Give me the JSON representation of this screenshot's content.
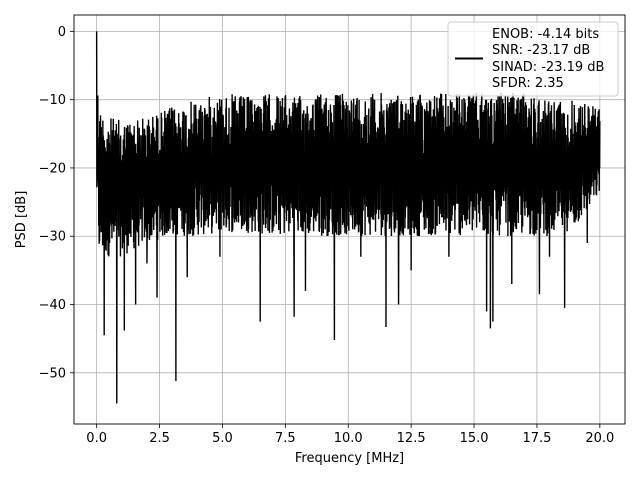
{
  "chart_data": {
    "type": "line",
    "title": "",
    "xlabel": "Frequency [MHz]",
    "ylabel": "PSD [dB]",
    "xlim": [
      -0.9,
      21.0
    ],
    "ylim": [
      -57.5,
      2.4
    ],
    "x_ticks": [
      {
        "value": 0.0,
        "label": "0.0"
      },
      {
        "value": 2.5,
        "label": "2.5"
      },
      {
        "value": 5.0,
        "label": "5.0"
      },
      {
        "value": 7.5,
        "label": "7.5"
      },
      {
        "value": 10.0,
        "label": "10.0"
      },
      {
        "value": 12.5,
        "label": "12.5"
      },
      {
        "value": 15.0,
        "label": "15.0"
      },
      {
        "value": 17.5,
        "label": "17.5"
      },
      {
        "value": 20.0,
        "label": "20.0"
      }
    ],
    "y_ticks": [
      {
        "value": 0,
        "label": "0"
      },
      {
        "value": -10,
        "label": "−10"
      },
      {
        "value": -20,
        "label": "−20"
      },
      {
        "value": -30,
        "label": "−30"
      },
      {
        "value": -40,
        "label": "−40"
      },
      {
        "value": -50,
        "label": "−50"
      }
    ],
    "grid": true,
    "legend": {
      "placement": "top-right",
      "entries": [
        "ENOB: -4.14 bits",
        "SNR: -23.17 dB",
        "SINAD: -23.19 dB",
        "SFDR: 2.35"
      ]
    },
    "series": [
      {
        "color": "#000000",
        "x_range": [
          0.0,
          20.0
        ],
        "envelope": {
          "x": [
            0.0,
            0.1,
            0.5,
            1.0,
            2.0,
            3.0,
            4.0,
            5.0,
            6.0,
            7.0,
            8.0,
            9.0,
            10.0,
            11.0,
            12.0,
            13.0,
            14.0,
            15.0,
            16.0,
            17.0,
            18.0,
            19.0,
            20.0
          ],
          "upper": [
            -5,
            -11,
            -12.5,
            -13,
            -12.5,
            -11,
            -10,
            -9,
            -9.5,
            -9,
            -9.5,
            -9,
            -9,
            -9,
            -9,
            -9,
            -9,
            -9,
            -9,
            -9,
            -9.5,
            -10,
            -11
          ],
          "lower": [
            -25,
            -33,
            -33,
            -33,
            -31,
            -30,
            -30,
            -29.5,
            -29.5,
            -30,
            -30,
            -30,
            -30,
            -30,
            -30,
            -30,
            -30,
            -30,
            -30,
            -30,
            -30,
            -29,
            -24
          ]
        },
        "peaks": [
          {
            "x": 0.0,
            "y": 0.0
          },
          {
            "x": 0.3,
            "y": -44.5
          },
          {
            "x": 0.8,
            "y": -54.5
          },
          {
            "x": 1.1,
            "y": -43.8
          },
          {
            "x": 1.55,
            "y": -40
          },
          {
            "x": 2.0,
            "y": -34
          },
          {
            "x": 2.4,
            "y": -39
          },
          {
            "x": 3.15,
            "y": -51.2
          },
          {
            "x": 3.6,
            "y": -36
          },
          {
            "x": 4.9,
            "y": -33
          },
          {
            "x": 6.5,
            "y": -42.5
          },
          {
            "x": 7.85,
            "y": -41.8
          },
          {
            "x": 8.3,
            "y": -38
          },
          {
            "x": 9.45,
            "y": -45.2
          },
          {
            "x": 10.5,
            "y": -33
          },
          {
            "x": 11.5,
            "y": -43.3
          },
          {
            "x": 12.0,
            "y": -40
          },
          {
            "x": 12.5,
            "y": -35
          },
          {
            "x": 14.0,
            "y": -33
          },
          {
            "x": 15.5,
            "y": -41
          },
          {
            "x": 15.65,
            "y": -43.5
          },
          {
            "x": 15.75,
            "y": -42.5
          },
          {
            "x": 16.5,
            "y": -37
          },
          {
            "x": 17.6,
            "y": -38.5
          },
          {
            "x": 18.0,
            "y": -33
          },
          {
            "x": 18.6,
            "y": -40.5
          },
          {
            "x": 19.5,
            "y": -31
          }
        ]
      }
    ]
  }
}
